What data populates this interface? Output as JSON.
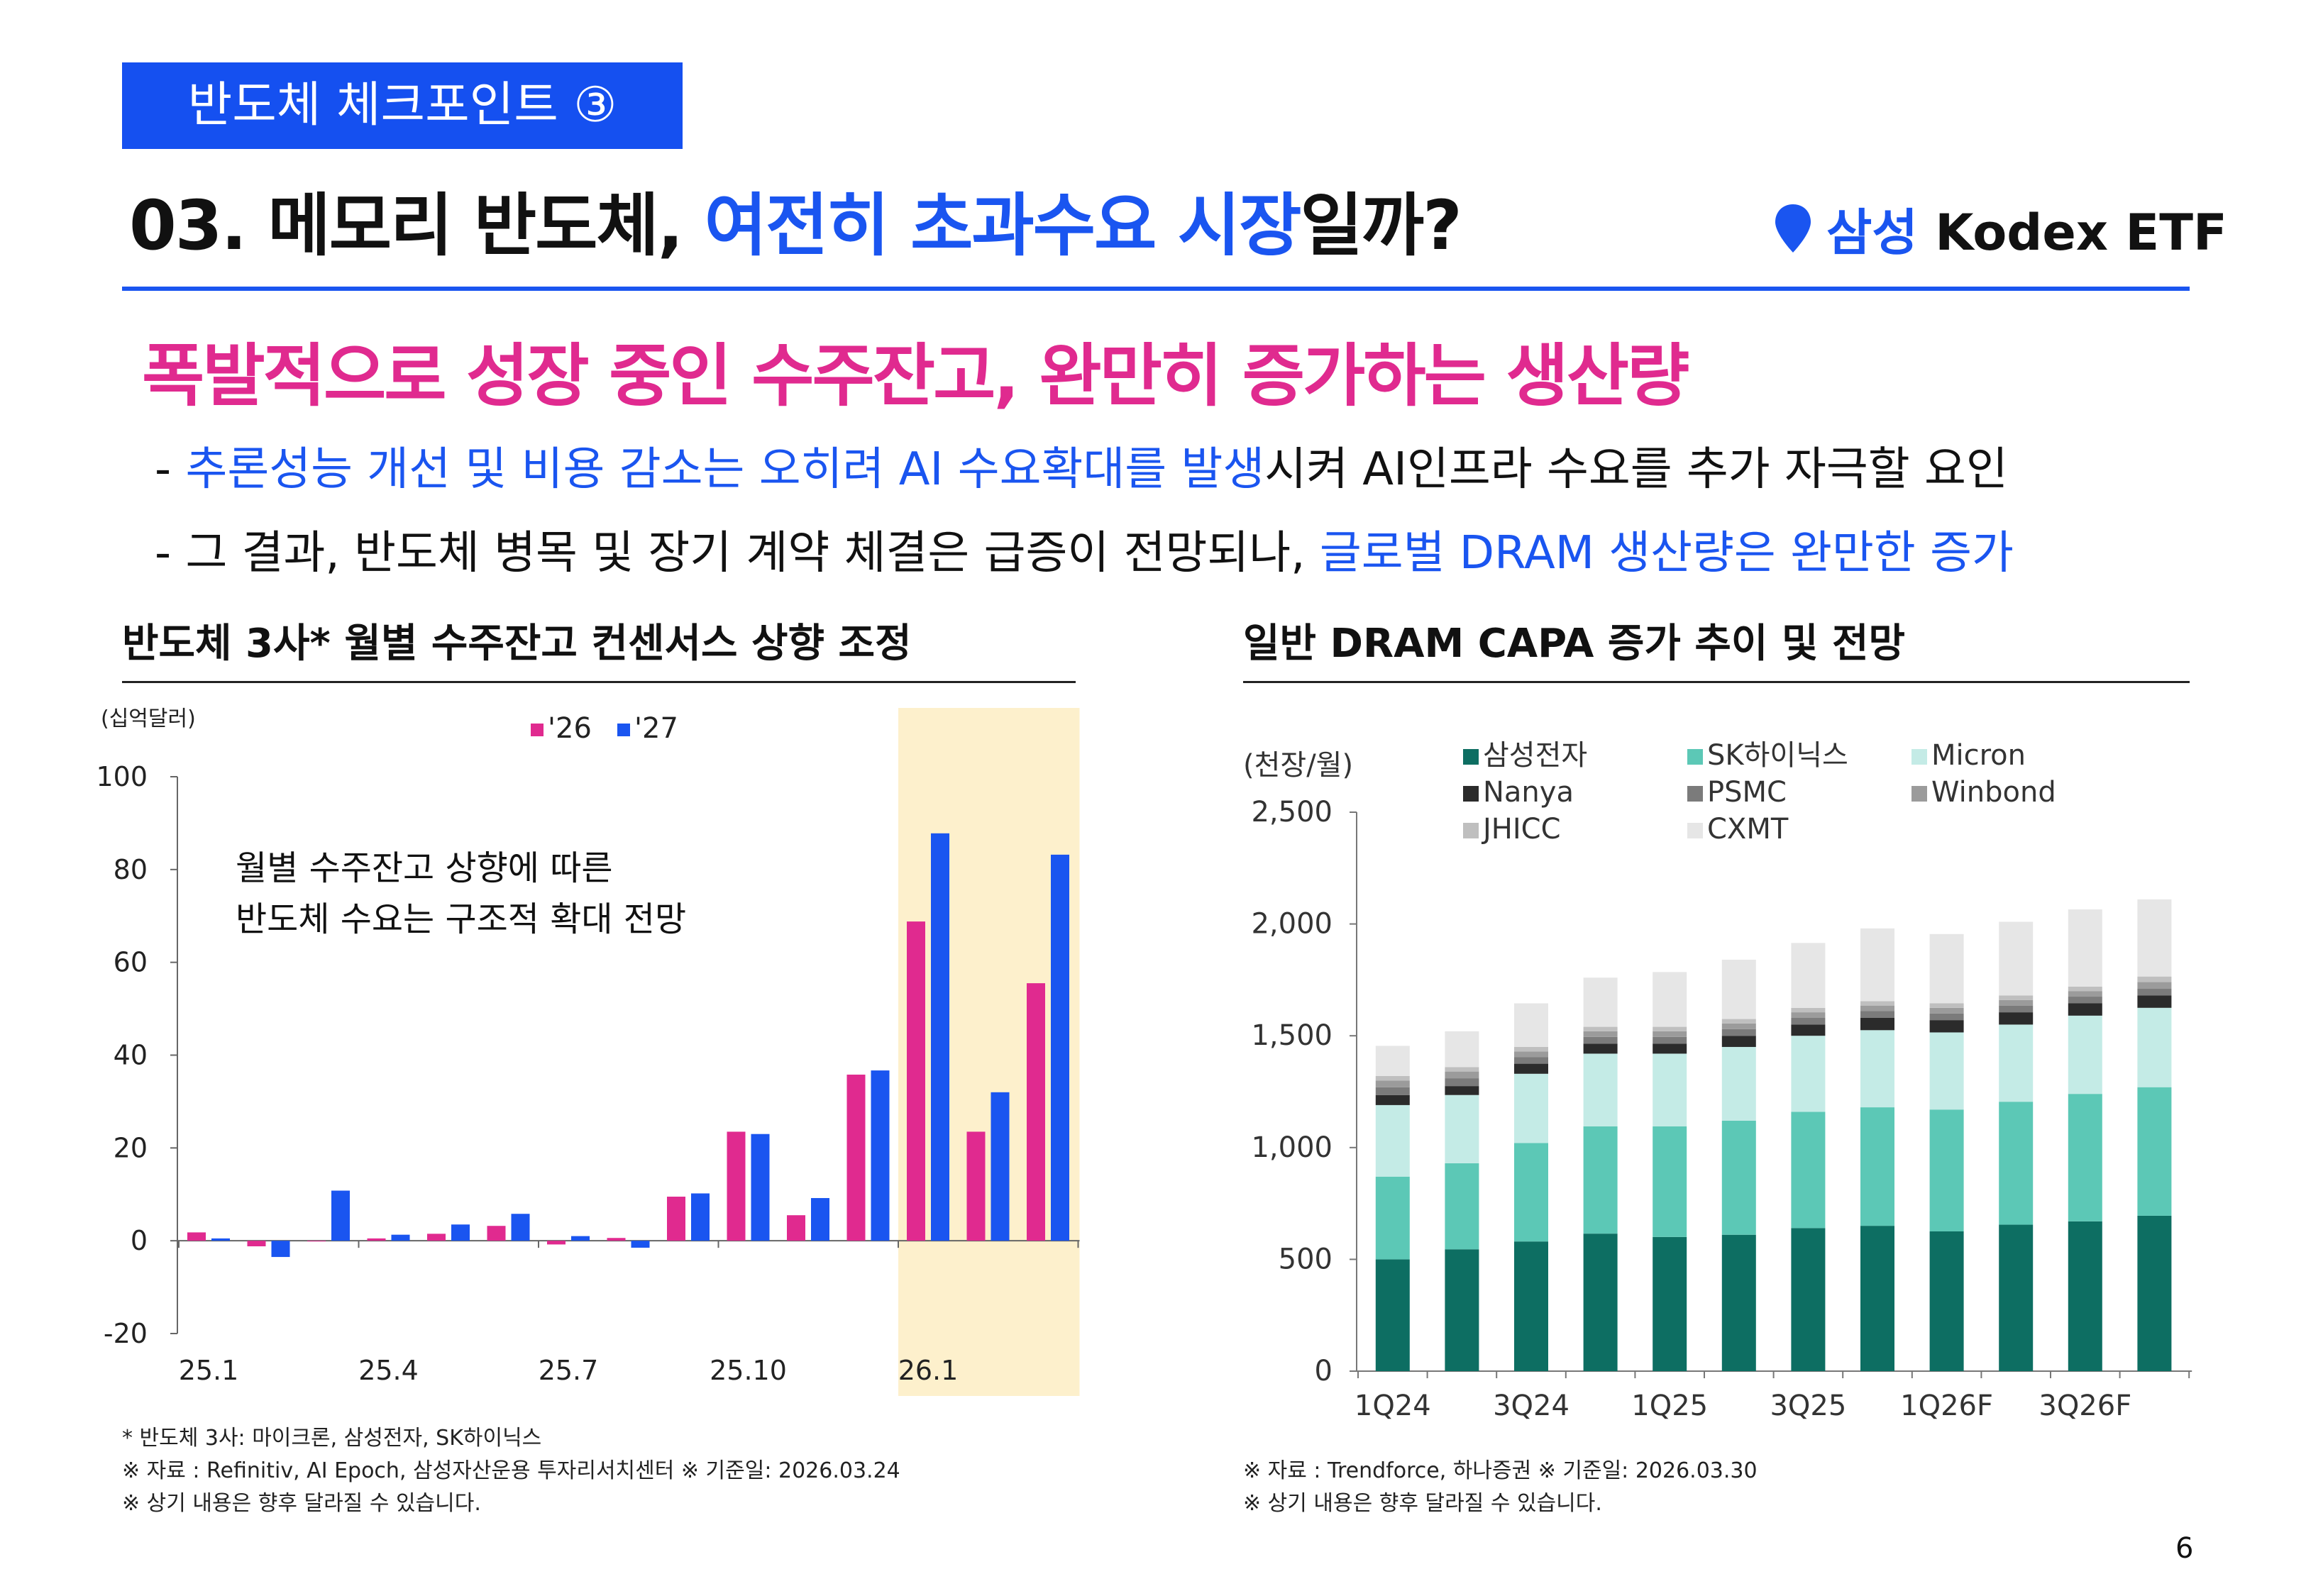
{
  "header": {
    "tag": "반도체 체크포인트 ③",
    "title_part1": "03. 메모리 반도체, ",
    "title_highlight": "여전히 초과수요 시장",
    "title_part2": "일까?",
    "brand_part1": "삼성",
    "brand_part2": "Kodex ETF"
  },
  "subtitle": "폭발적으로 성장 중인 수주잔고, 완만히 증가하는 생산량",
  "bullets": [
    {
      "prefix": "- ",
      "highlight": "추론성능 개선 및 비용 감소는 오히려 AI 수요확대를 발생",
      "rest": "시켜 AI인프라 수요를 추가 자극할 요인"
    },
    {
      "prefix": "- 그 결과, 반도체 병목 및 장기 계약 체결은 급증이 전망되나, ",
      "highlight": "글로벌 DRAM 생산량은 완만한 증가",
      "rest": ""
    }
  ],
  "left_chart": {
    "title": "반도체 3사* 월별 수주잔고 컨센서스 상향 조정",
    "annotation_line1": "월별 수주잔고 상향에 따른",
    "annotation_line2": "반도체 수요는 구조적 확대 전망",
    "notes": [
      "* 반도체 3사: 마이크론, 삼성전자, SK하이닉스",
      "※ 자료 : Refinitiv, AI Epoch, 삼성자산운용 투자리서치센터 ※ 기준일: 2026.03.24",
      "※ 상기 내용은 향후 달라질 수 있습니다."
    ]
  },
  "right_chart": {
    "title": "일반 DRAM CAPA 증가 추이 및 전망",
    "notes": [
      "※ 자료 : Trendforce, 하나증권 ※ 기준일: 2026.03.30",
      "※ 상기 내용은 향후 달라질 수 있습니다."
    ]
  },
  "chart_data": [
    {
      "type": "bar",
      "ylabel": "(십억달러)",
      "ylim": [
        -20,
        100
      ],
      "yticks": [
        100,
        80,
        60,
        40,
        20,
        0,
        -20
      ],
      "months": 15,
      "xtick_labels": [
        "25.1",
        "25.4",
        "25.7",
        "25.10",
        "26.1"
      ],
      "highlight_range": [
        "26.1",
        "26.3"
      ],
      "highlight_color": "#fdf0cc",
      "series": [
        {
          "name": "'26",
          "color": "#e02a8f",
          "values": [
            1.8,
            -1.2,
            0,
            0.5,
            1.5,
            3.2,
            -0.8,
            0.6,
            9.5,
            23.5,
            5.5,
            35.8,
            68.8,
            23.5,
            55.5
          ]
        },
        {
          "name": "'27",
          "color": "#1a55f0",
          "values": [
            0.5,
            -3.5,
            10.8,
            1.3,
            3.5,
            5.8,
            1.0,
            -1.5,
            10.2,
            23.0,
            9.2,
            36.7,
            87.8,
            32.0,
            83.2
          ]
        }
      ]
    },
    {
      "type": "bar",
      "stacked": true,
      "ylabel": "(천장/월)",
      "ylim": [
        0,
        2500
      ],
      "yticks": [
        "2,500",
        "2,000",
        "1,500",
        "1,000",
        "500",
        "0"
      ],
      "ytick_values": [
        2500,
        2000,
        1500,
        1000,
        500,
        0
      ],
      "categories": [
        "1Q24",
        "2Q24",
        "3Q24",
        "4Q24",
        "1Q25",
        "2Q25",
        "3Q25",
        "4Q25",
        "1Q26F",
        "2Q26F",
        "3Q26F",
        "4Q26F"
      ],
      "xtick_labels": [
        "1Q24",
        "3Q24",
        "1Q25",
        "3Q25",
        "1Q26F",
        "3Q26F"
      ],
      "series": [
        {
          "name": "삼성전자",
          "color": "#0d6e62",
          "values": [
            500,
            545,
            580,
            615,
            600,
            610,
            640,
            650,
            625,
            655,
            670,
            695
          ]
        },
        {
          "name": "SK하이닉스",
          "color": "#5cc8b6",
          "values": [
            370,
            385,
            440,
            480,
            495,
            510,
            520,
            530,
            545,
            550,
            570,
            575
          ]
        },
        {
          "name": "Micron",
          "color": "#c4ebe6",
          "values": [
            320,
            305,
            310,
            325,
            325,
            330,
            340,
            345,
            345,
            345,
            350,
            355
          ]
        },
        {
          "name": "Nanya",
          "color": "#2b2b2b",
          "values": [
            45,
            40,
            45,
            45,
            45,
            50,
            50,
            55,
            55,
            55,
            55,
            55
          ]
        },
        {
          "name": "PSMC",
          "color": "#7b7b7b",
          "values": [
            35,
            35,
            30,
            30,
            30,
            30,
            30,
            30,
            30,
            30,
            30,
            30
          ]
        },
        {
          "name": "Winbond",
          "color": "#9b9b9b",
          "values": [
            30,
            30,
            25,
            25,
            25,
            25,
            25,
            25,
            25,
            25,
            25,
            30
          ]
        },
        {
          "name": "JHICC",
          "color": "#bfbfbf",
          "values": [
            20,
            20,
            20,
            20,
            20,
            20,
            20,
            20,
            20,
            20,
            20,
            25
          ]
        },
        {
          "name": "CXMT",
          "color": "#e6e6e6",
          "values": [
            135,
            160,
            195,
            220,
            245,
            265,
            290,
            325,
            310,
            330,
            345,
            345
          ]
        }
      ]
    }
  ],
  "page_number": "6"
}
